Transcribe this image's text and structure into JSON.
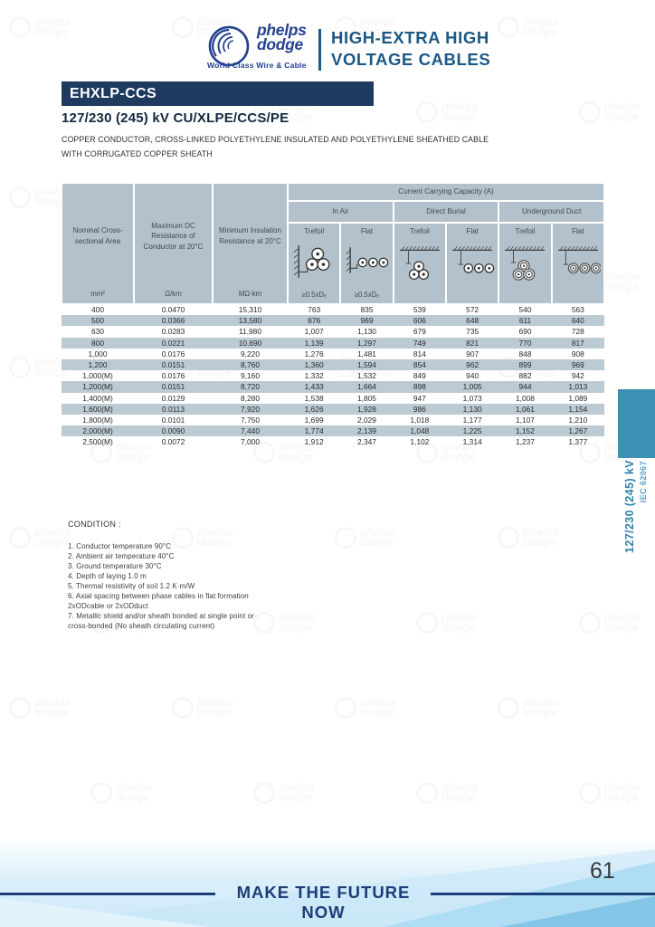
{
  "header": {
    "brand_line1": "phelps",
    "brand_line2": "dodge",
    "tagline": "World Class  Wire & Cable",
    "title_line1": "HIGH-EXTRA HIGH",
    "title_line2": "VOLTAGE CABLES"
  },
  "product": {
    "banner": "EHXLP-CCS",
    "title": "127/230 (245) kV CU/XLPE/CCS/PE",
    "description_line1": "COPPER CONDUCTOR, CROSS-LINKED POLYETHYLENE INSULATED AND POLYETHYLENE SHEATHED CABLE",
    "description_line2": "WITH CORRUGATED COPPER SHEATH"
  },
  "table": {
    "capacity_title": "Current Carrying Capacity (A)",
    "col1": {
      "label": "Nominal Cross-sectional Area",
      "unit": "mm²"
    },
    "col2": {
      "label": "Maximum DC Resistance of Conductor at 20°C",
      "unit": "Ω/km"
    },
    "col3": {
      "label": "Minimum Insulation Resistance at 20°C",
      "unit": "MΩ·km"
    },
    "groups": [
      {
        "label": "In Air"
      },
      {
        "label": "Direct Burial"
      },
      {
        "label": "Underground Duct"
      }
    ],
    "subcols": [
      {
        "label": "Trefoil",
        "unit": "≥0.5xDₑ"
      },
      {
        "label": "Flat",
        "unit": "≥0.5xDₑ"
      },
      {
        "label": "Trefoil",
        "unit": ""
      },
      {
        "label": "Flat",
        "unit": ""
      },
      {
        "label": "Trefoil",
        "unit": ""
      },
      {
        "label": "Flat",
        "unit": ""
      }
    ],
    "rows": [
      {
        "area": "400",
        "dc_resistance": "0.0470",
        "insulation_resistance": "15,310",
        "capacities": [
          "763",
          "835",
          "539",
          "572",
          "540",
          "563"
        ]
      },
      {
        "area": "500",
        "dc_resistance": "0.0366",
        "insulation_resistance": "13,580",
        "capacities": [
          "876",
          "969",
          "606",
          "648",
          "611",
          "640"
        ]
      },
      {
        "area": "630",
        "dc_resistance": "0.0283",
        "insulation_resistance": "11,980",
        "capacities": [
          "1,007",
          "1,130",
          "679",
          "735",
          "690",
          "728"
        ]
      },
      {
        "area": "800",
        "dc_resistance": "0.0221",
        "insulation_resistance": "10,690",
        "capacities": [
          "1,139",
          "1,297",
          "749",
          "821",
          "770",
          "817"
        ]
      },
      {
        "area": "1,000",
        "dc_resistance": "0.0176",
        "insulation_resistance": "9,220",
        "capacities": [
          "1,276",
          "1,481",
          "814",
          "907",
          "848",
          "908"
        ]
      },
      {
        "area": "1,200",
        "dc_resistance": "0.0151",
        "insulation_resistance": "8,760",
        "capacities": [
          "1,360",
          "1,594",
          "854",
          "962",
          "899",
          "969"
        ]
      },
      {
        "area": "1,000(M)",
        "dc_resistance": "0.0176",
        "insulation_resistance": "9,160",
        "capacities": [
          "1,332",
          "1,532",
          "849",
          "940",
          "882",
          "942"
        ]
      },
      {
        "area": "1,200(M)",
        "dc_resistance": "0.0151",
        "insulation_resistance": "8,720",
        "capacities": [
          "1,433",
          "1,664",
          "898",
          "1,005",
          "944",
          "1,013"
        ]
      },
      {
        "area": "1,400(M)",
        "dc_resistance": "0.0129",
        "insulation_resistance": "8,280",
        "capacities": [
          "1,538",
          "1,805",
          "947",
          "1,073",
          "1,008",
          "1,089"
        ]
      },
      {
        "area": "1,600(M)",
        "dc_resistance": "0.0113",
        "insulation_resistance": "7,920",
        "capacities": [
          "1,626",
          "1,928",
          "986",
          "1,130",
          "1,061",
          "1,154"
        ]
      },
      {
        "area": "1,800(M)",
        "dc_resistance": "0.0101",
        "insulation_resistance": "7,750",
        "capacities": [
          "1,699",
          "2,029",
          "1,018",
          "1,177",
          "1,107",
          "1,210"
        ]
      },
      {
        "area": "2,000(M)",
        "dc_resistance": "0.0090",
        "insulation_resistance": "7,440",
        "capacities": [
          "1,774",
          "2,139",
          "1,048",
          "1,225",
          "1,152",
          "1,267"
        ]
      },
      {
        "area": "2,500(M)",
        "dc_resistance": "0.0072",
        "insulation_resistance": "7,000",
        "capacities": [
          "1,912",
          "2,347",
          "1,102",
          "1,314",
          "1,237",
          "1,377"
        ]
      }
    ]
  },
  "conditions": {
    "title": "CONDITION :",
    "lines": [
      "1. Conductor temperature 90°C",
      "2. Ambient air temperature 40°C",
      "3. Ground temperature 30°C",
      "4. Depth of laying 1.0 m",
      "5. Thermal resistivity of soil 1.2 K·m/W",
      "6. Axial spacing between phase cables in flat formation",
      "2xODcable or 2xODduct",
      "7. Metallic shield and/or sheath bonded at single point or",
      "cross-bonded (No sheath circulating current)"
    ]
  },
  "side_tab": {
    "line1": "127/230 (245) kV",
    "line2": "IEC 62067"
  },
  "footer": {
    "slogan": "MAKE THE FUTURE NOW",
    "page_number": "61"
  },
  "decor": {
    "watermark_line1": "phelps",
    "watermark_line2": "dodge"
  },
  "colors": {
    "brand_navy": "#23418f",
    "banner_navy": "#1e3a5f",
    "header_blue": "#1c5886",
    "table_header_bg": "#b2c1cb",
    "row_alt_bg": "#bccad4",
    "tab_teal": "#3e90b4",
    "footer_navy": "#1d3d78"
  }
}
